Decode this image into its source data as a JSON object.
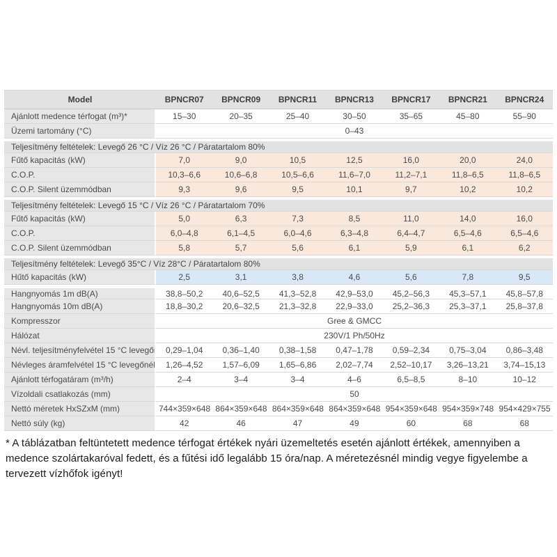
{
  "colors": {
    "header_bg": "#e2e2e2",
    "label_bg": "#e7e7e7",
    "section_bg": "#e2e2e2",
    "heating_row_bg": "#fbe8dc",
    "cooling_row_bg": "#d8e8f6",
    "plain_row_bg": "#ffffff",
    "text": "#4a4a4a"
  },
  "chart_data": {
    "type": "table",
    "title": "",
    "columns": [
      "Model",
      "BPNCR07",
      "BPNCR09",
      "BPNCR11",
      "BPNCR13",
      "BPNCR17",
      "BPNCR21",
      "BPNCR24"
    ],
    "rows": [
      {
        "kind": "data",
        "bg": "white",
        "label": "Ajánlott medence térfogat (m³)*",
        "values": [
          "15–30",
          "20–35",
          "25–40",
          "30–50",
          "35–65",
          "45–80",
          "55–90"
        ]
      },
      {
        "kind": "merged",
        "bg": "white",
        "label": "Üzemi tartomány (°C)",
        "value": "0–43"
      },
      {
        "kind": "section",
        "label": "Teljesítmény feltételek: Levegő 26 °C / Víz 26 °C / Páratartalom 80%"
      },
      {
        "kind": "data",
        "bg": "peach",
        "label": "Fűtő kapacitás (kW)",
        "values": [
          "7,0",
          "9,0",
          "10,5",
          "12,5",
          "16,0",
          "20,0",
          "24,0"
        ]
      },
      {
        "kind": "data",
        "bg": "peach",
        "label": "C.O.P.",
        "values": [
          "10,3–6,6",
          "10,6–6,8",
          "10,5–6,6",
          "11,6–7,0",
          "11,2–7,1",
          "11,8–6,5",
          "11,8–6,5"
        ]
      },
      {
        "kind": "data",
        "bg": "peach",
        "label": "C.O.P. Silent üzemmódban",
        "values": [
          "9,3",
          "9,6",
          "9,5",
          "10,1",
          "9,7",
          "10,2",
          "10,2"
        ]
      },
      {
        "kind": "section",
        "label": "Teljesítmény feltételek: Levegő 15 °C / Víz 26 °C / Páratartalom 70%"
      },
      {
        "kind": "data",
        "bg": "peach",
        "label": "Fűtő kapacitás (kW)",
        "values": [
          "5,0",
          "6,3",
          "7,3",
          "8,5",
          "11,0",
          "14,0",
          "16,0"
        ]
      },
      {
        "kind": "data",
        "bg": "peach",
        "label": "C.O.P.",
        "values": [
          "6,0–4,8",
          "6,1–4,5",
          "6,0–4,6",
          "6,3–4,8",
          "6,4–4,7",
          "6,5–4,6",
          "6,5–4,6"
        ]
      },
      {
        "kind": "data",
        "bg": "peach",
        "label": "C.O.P. Silent üzemmódban",
        "values": [
          "5,8",
          "5,7",
          "5,6",
          "6,1",
          "5,9",
          "6,1",
          "6,2"
        ]
      },
      {
        "kind": "section",
        "label": "Teljesítmény feltételek: Levegő 35°C / Víz 28°C / Páratartalom 80%"
      },
      {
        "kind": "data",
        "bg": "blue",
        "label": "Hűtő kapacitás (kW)",
        "values": [
          "2,5",
          "3,1",
          "3,8",
          "4,6",
          "5,6",
          "7,8",
          "9,5"
        ]
      },
      {
        "kind": "data",
        "bg": "white",
        "gap": true,
        "label": "Hangnyomás 1m dB(A)",
        "values": [
          "38,8–50,2",
          "40,6–52,5",
          "41,3–52,8",
          "42,9–53,0",
          "45,2–56,3",
          "45,3–57,1",
          "45,8–57,8"
        ]
      },
      {
        "kind": "data",
        "bg": "white",
        "label": "Hangnyomás 10m dB(A)",
        "values": [
          "18,8–30,2",
          "20,6–32,5",
          "21,3–32,8",
          "22,9–33,0",
          "25,2–36,3",
          "25,3–37,1",
          "25,8–37,8"
        ]
      },
      {
        "kind": "merged",
        "bg": "white",
        "label": "Kompresszor",
        "value": "Gree & GMCC"
      },
      {
        "kind": "merged",
        "bg": "white",
        "label": "Hálózat",
        "value": "230V/1 Ph/50Hz"
      },
      {
        "kind": "data",
        "bg": "white",
        "label": "Névl. teljesítményfelvétel 15 °C levegőnél (kW)",
        "values": [
          "0,29–1,04",
          "0,36–1,40",
          "0,38–1,58",
          "0,47–1,78",
          "0,59–2,34",
          "0,75–3,04",
          "0,86–3,48"
        ]
      },
      {
        "kind": "data",
        "bg": "white",
        "label": "Névleges áramfelvétel 15 °C levegőnél (A)",
        "values": [
          "1,26–4,52",
          "1,57–6,09",
          "1,65–6,86",
          "2,02–7,74",
          "2,52–10,17",
          "3,26–13,21",
          "3,74–15,13"
        ]
      },
      {
        "kind": "data",
        "bg": "white",
        "label": "Ajánlott térfogatáram (m³/h)",
        "values": [
          "2–4",
          "3–4",
          "3–4",
          "4–6",
          "6,5–8,5",
          "8–10",
          "10–12"
        ]
      },
      {
        "kind": "merged",
        "bg": "white",
        "label": "Vízoldali csatlakozás (mm)",
        "value": "50"
      },
      {
        "kind": "data",
        "bg": "white",
        "label": "Nettó méretek HxSZxM (mm)",
        "values": [
          "744×359×648",
          "864×359×648",
          "864×359×648",
          "864×359×648",
          "954×359×648",
          "954×359×748",
          "954×429×755"
        ]
      },
      {
        "kind": "data",
        "bg": "white",
        "label": "Nettó súly (kg)",
        "values": [
          "42",
          "46",
          "47",
          "49",
          "60",
          "68",
          "68"
        ]
      }
    ]
  },
  "footnote": "* A táblázatban feltüntetett medence térfogat értékek nyári üzemeltetés esetén ajánlott értékek, amennyiben a medence szolártakaróval fedett, és a fűtési idő legalább 15 óra/nap. A méretezésnél mindig vegye figyelembe a tervezett vízhőfok igényt!"
}
